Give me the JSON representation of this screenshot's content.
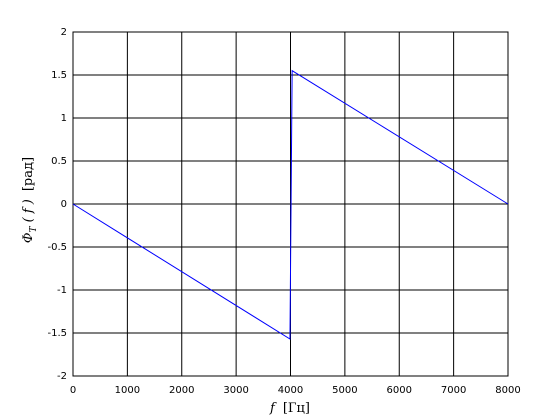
{
  "chart_data": {
    "type": "line",
    "x_label": {
      "symbol": "f",
      "unit": "[Гц]"
    },
    "y_label": {
      "symbol": "Φ",
      "subscript": "T",
      "argument": "( f )",
      "unit": "[рад]"
    },
    "series": [
      {
        "color": "#0000ff",
        "x": [
          0,
          3990,
          4030,
          8000
        ],
        "values": [
          0,
          -1.57,
          1.55,
          0
        ]
      }
    ],
    "xlim": [
      0,
      8000
    ],
    "xticks": [
      0,
      1000,
      2000,
      3000,
      4000,
      5000,
      6000,
      7000,
      8000
    ],
    "ylim": [
      -2,
      2
    ],
    "yticks": [
      -2,
      -1.5,
      -1,
      -0.5,
      0,
      0.5,
      1,
      1.5,
      2
    ],
    "grid": true
  }
}
